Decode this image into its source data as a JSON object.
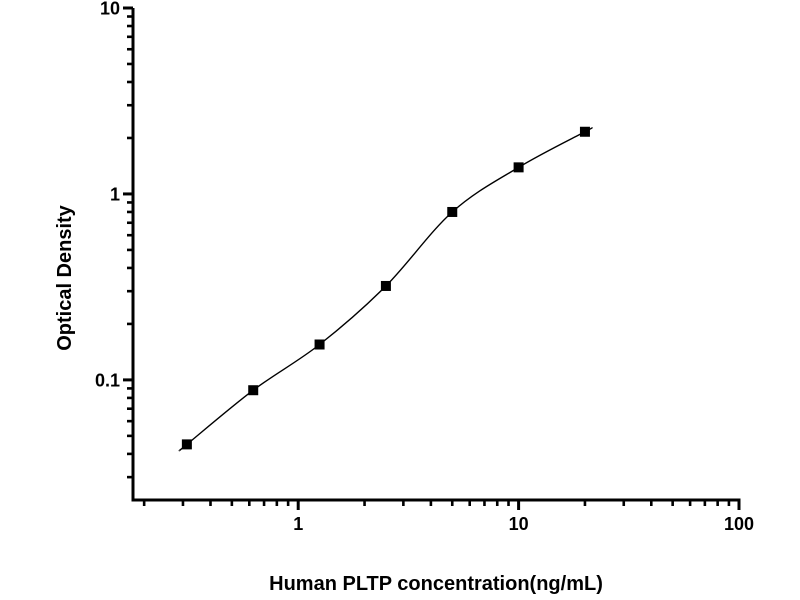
{
  "figure": {
    "background": "#ffffff",
    "ink_color": "#000000",
    "marker_color": "#000000"
  },
  "chart_data": {
    "type": "scatter",
    "title": "",
    "xlabel": "Human PLTP concentration(ng/mL)",
    "ylabel": "Optical Density",
    "x_scale": "log",
    "y_scale": "log",
    "xlim": [
      0.178,
      100
    ],
    "ylim": [
      0.0226,
      10
    ],
    "x_major_ticks": [
      1,
      10,
      100
    ],
    "x_major_tick_labels": [
      "1",
      "10",
      "100"
    ],
    "y_major_ticks": [
      0.1,
      1,
      10
    ],
    "y_major_tick_labels": [
      "0.1",
      "1",
      "10"
    ],
    "grid": false,
    "legend": false,
    "marker": "filled-square",
    "fit_line": "smooth-sigmoid-fit",
    "series": [
      {
        "name": "standard-curve",
        "x": [
          0.3125,
          0.625,
          1.25,
          2.5,
          5,
          10,
          20
        ],
        "y": [
          0.045,
          0.088,
          0.155,
          0.32,
          0.8,
          1.39,
          2.16
        ]
      }
    ]
  }
}
